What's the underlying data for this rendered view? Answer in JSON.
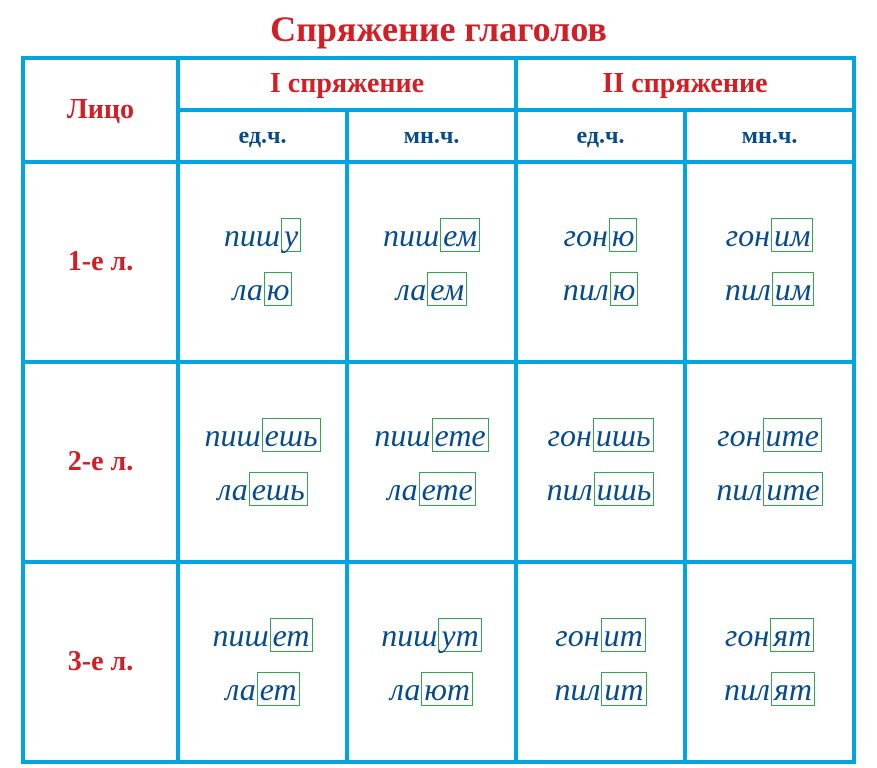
{
  "title": "Спряжение глаголов",
  "colors": {
    "border": "#00a6e0",
    "header_text": "#d41e26",
    "subheader_text": "#054b8d",
    "word_text": "#054b8d",
    "ending_box": "#2fa84f",
    "background": "#ffffff"
  },
  "headers": {
    "lico": "Лицо",
    "conj1": "I спряжение",
    "conj2": "II спряжение",
    "sg": "ед.ч.",
    "pl": "мн.ч."
  },
  "rows": [
    {
      "label": "1-е л.",
      "cells": [
        [
          {
            "stem": "пиш",
            "ending": "у"
          },
          {
            "stem": "ла",
            "ending": "ю"
          }
        ],
        [
          {
            "stem": "пиш",
            "ending": "ем"
          },
          {
            "stem": "ла",
            "ending": "ем"
          }
        ],
        [
          {
            "stem": "гон",
            "ending": "ю"
          },
          {
            "stem": "пил",
            "ending": "ю"
          }
        ],
        [
          {
            "stem": "гон",
            "ending": "им"
          },
          {
            "stem": "пил",
            "ending": "им"
          }
        ]
      ]
    },
    {
      "label": "2-е л.",
      "cells": [
        [
          {
            "stem": "пиш",
            "ending": "ешь"
          },
          {
            "stem": "ла",
            "ending": "ешь"
          }
        ],
        [
          {
            "stem": "пиш",
            "ending": "ете"
          },
          {
            "stem": "ла",
            "ending": "ете"
          }
        ],
        [
          {
            "stem": "гон",
            "ending": "ишь"
          },
          {
            "stem": "пил",
            "ending": "ишь"
          }
        ],
        [
          {
            "stem": "гон",
            "ending": "ите"
          },
          {
            "stem": "пил",
            "ending": "ите"
          }
        ]
      ]
    },
    {
      "label": "3-е л.",
      "cells": [
        [
          {
            "stem": "пиш",
            "ending": "ет"
          },
          {
            "stem": "ла",
            "ending": "ет"
          }
        ],
        [
          {
            "stem": "пиш",
            "ending": "ут"
          },
          {
            "stem": "ла",
            "ending": "ют"
          }
        ],
        [
          {
            "stem": "гон",
            "ending": "ит"
          },
          {
            "stem": "пил",
            "ending": "ит"
          }
        ],
        [
          {
            "stem": "гон",
            "ending": "ят"
          },
          {
            "stem": "пил",
            "ending": "ят"
          }
        ]
      ]
    }
  ]
}
